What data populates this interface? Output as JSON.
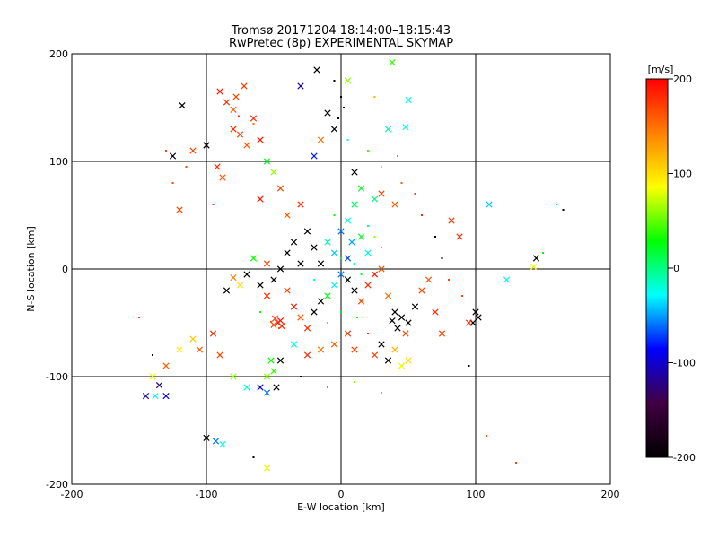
{
  "chart_data": {
    "type": "scatter",
    "title": "Tromsø 20171204 18:14:00–18:15:43",
    "subtitle": "RwPretec (8p) EXPERIMENTAL SKYMAP",
    "xlabel": "E-W location [km]",
    "ylabel": "N-S location [km]",
    "xlim": [
      -200,
      200
    ],
    "ylim": [
      -200,
      200
    ],
    "x_ticks": [
      "-200",
      "-100",
      "0",
      "100",
      "200"
    ],
    "y_ticks": [
      "-200",
      "-100",
      "0",
      "100",
      "200"
    ],
    "grid_lines_x": [
      -100,
      0,
      100
    ],
    "grid_lines_y": [
      -100,
      0,
      100
    ],
    "colorbar": {
      "unit_label": "[m/s]",
      "range": [
        -200,
        200
      ],
      "ticks": [
        "200",
        "100",
        "0",
        "-100",
        "-200"
      ],
      "colors": [
        "#000000",
        "#400040",
        "#0000ff",
        "#00ffff",
        "#00ff00",
        "#ffff00",
        "#ff8000",
        "#ff0000"
      ],
      "placement": "right"
    },
    "marker_styles": [
      "x",
      "dot"
    ],
    "points": [
      {
        "x": -47,
        "y": -50,
        "v": 180,
        "m": "x"
      },
      {
        "x": -45,
        "y": -48,
        "v": 190,
        "m": "x"
      },
      {
        "x": -50,
        "y": -52,
        "v": 170,
        "m": "x"
      },
      {
        "x": -44,
        "y": -53,
        "v": 185,
        "m": "x"
      },
      {
        "x": -49,
        "y": -46,
        "v": 175,
        "m": "x"
      },
      {
        "x": -52,
        "y": -49,
        "v": 160,
        "m": "dot"
      },
      {
        "x": -46,
        "y": -55,
        "v": 165,
        "m": "dot"
      },
      {
        "x": -85,
        "y": 155,
        "v": 180,
        "m": "x"
      },
      {
        "x": -78,
        "y": 160,
        "v": 170,
        "m": "x"
      },
      {
        "x": -80,
        "y": 148,
        "v": 160,
        "m": "x"
      },
      {
        "x": -90,
        "y": 165,
        "v": 190,
        "m": "x"
      },
      {
        "x": -72,
        "y": 170,
        "v": 175,
        "m": "x"
      },
      {
        "x": -76,
        "y": 142,
        "v": 185,
        "m": "dot"
      },
      {
        "x": -65,
        "y": 135,
        "v": 150,
        "m": "dot"
      },
      {
        "x": -118,
        "y": 152,
        "v": -200,
        "m": "x"
      },
      {
        "x": -100,
        "y": 115,
        "v": -200,
        "m": "x"
      },
      {
        "x": -125,
        "y": 105,
        "v": -190,
        "m": "x"
      },
      {
        "x": -110,
        "y": 110,
        "v": 170,
        "m": "x"
      },
      {
        "x": -92,
        "y": 95,
        "v": 180,
        "m": "x"
      },
      {
        "x": -88,
        "y": 85,
        "v": 160,
        "m": "x"
      },
      {
        "x": -120,
        "y": 55,
        "v": 170,
        "m": "x"
      },
      {
        "x": -95,
        "y": 60,
        "v": 180,
        "m": "dot"
      },
      {
        "x": -55,
        "y": 100,
        "v": 20,
        "m": "x"
      },
      {
        "x": -50,
        "y": 90,
        "v": 60,
        "m": "x"
      },
      {
        "x": -45,
        "y": 75,
        "v": 170,
        "m": "x"
      },
      {
        "x": -60,
        "y": 65,
        "v": 190,
        "m": "x"
      },
      {
        "x": -40,
        "y": 50,
        "v": 160,
        "m": "x"
      },
      {
        "x": -30,
        "y": 60,
        "v": 180,
        "m": "x"
      },
      {
        "x": -20,
        "y": 105,
        "v": -80,
        "m": "x"
      },
      {
        "x": -15,
        "y": 120,
        "v": 150,
        "m": "x"
      },
      {
        "x": -10,
        "y": 145,
        "v": -200,
        "m": "x"
      },
      {
        "x": -5,
        "y": 130,
        "v": -200,
        "m": "x"
      },
      {
        "x": -18,
        "y": 185,
        "v": -200,
        "m": "x"
      },
      {
        "x": -30,
        "y": 170,
        "v": -110,
        "m": "x"
      },
      {
        "x": 5,
        "y": 175,
        "v": 60,
        "m": "x"
      },
      {
        "x": 25,
        "y": 160,
        "v": 120,
        "m": "dot"
      },
      {
        "x": 38,
        "y": 192,
        "v": 40,
        "m": "x"
      },
      {
        "x": 50,
        "y": 157,
        "v": -30,
        "m": "x"
      },
      {
        "x": 48,
        "y": 132,
        "v": -20,
        "m": "x"
      },
      {
        "x": 35,
        "y": 130,
        "v": -10,
        "m": "x"
      },
      {
        "x": 42,
        "y": 105,
        "v": 150,
        "m": "dot"
      },
      {
        "x": 10,
        "y": 90,
        "v": -200,
        "m": "x"
      },
      {
        "x": 15,
        "y": 75,
        "v": 20,
        "m": "x"
      },
      {
        "x": 25,
        "y": 65,
        "v": 0,
        "m": "x"
      },
      {
        "x": 30,
        "y": 70,
        "v": 170,
        "m": "x"
      },
      {
        "x": 40,
        "y": 60,
        "v": 160,
        "m": "x"
      },
      {
        "x": 10,
        "y": 60,
        "v": 10,
        "m": "x"
      },
      {
        "x": 5,
        "y": 45,
        "v": -30,
        "m": "x"
      },
      {
        "x": 0,
        "y": 35,
        "v": -60,
        "m": "x"
      },
      {
        "x": 8,
        "y": 25,
        "v": -50,
        "m": "x"
      },
      {
        "x": 15,
        "y": 30,
        "v": 20,
        "m": "x"
      },
      {
        "x": 20,
        "y": 15,
        "v": -20,
        "m": "x"
      },
      {
        "x": 5,
        "y": 10,
        "v": -70,
        "m": "x"
      },
      {
        "x": -5,
        "y": 15,
        "v": -40,
        "m": "x"
      },
      {
        "x": -10,
        "y": 25,
        "v": -10,
        "m": "x"
      },
      {
        "x": -15,
        "y": 5,
        "v": -200,
        "m": "x"
      },
      {
        "x": -20,
        "y": 20,
        "v": -200,
        "m": "x"
      },
      {
        "x": -25,
        "y": 35,
        "v": -200,
        "m": "x"
      },
      {
        "x": -35,
        "y": 25,
        "v": -200,
        "m": "x"
      },
      {
        "x": -40,
        "y": 15,
        "v": -200,
        "m": "x"
      },
      {
        "x": -30,
        "y": 5,
        "v": -200,
        "m": "x"
      },
      {
        "x": -45,
        "y": 0,
        "v": -200,
        "m": "x"
      },
      {
        "x": -50,
        "y": -10,
        "v": -200,
        "m": "x"
      },
      {
        "x": -55,
        "y": 5,
        "v": 170,
        "m": "x"
      },
      {
        "x": -60,
        "y": -15,
        "v": -200,
        "m": "x"
      },
      {
        "x": -65,
        "y": 10,
        "v": 30,
        "m": "x"
      },
      {
        "x": -70,
        "y": -5,
        "v": -200,
        "m": "x"
      },
      {
        "x": -75,
        "y": -15,
        "v": 100,
        "m": "x"
      },
      {
        "x": -80,
        "y": -8,
        "v": 140,
        "m": "x"
      },
      {
        "x": -85,
        "y": -20,
        "v": -200,
        "m": "x"
      },
      {
        "x": -55,
        "y": -25,
        "v": 180,
        "m": "x"
      },
      {
        "x": -40,
        "y": -20,
        "v": 170,
        "m": "x"
      },
      {
        "x": -35,
        "y": -35,
        "v": 190,
        "m": "x"
      },
      {
        "x": -30,
        "y": -45,
        "v": 160,
        "m": "x"
      },
      {
        "x": -25,
        "y": -55,
        "v": 180,
        "m": "x"
      },
      {
        "x": -20,
        "y": -40,
        "v": -200,
        "m": "x"
      },
      {
        "x": -15,
        "y": -30,
        "v": -200,
        "m": "x"
      },
      {
        "x": -10,
        "y": -25,
        "v": 20,
        "m": "x"
      },
      {
        "x": -5,
        "y": -15,
        "v": -30,
        "m": "x"
      },
      {
        "x": 0,
        "y": -5,
        "v": -60,
        "m": "x"
      },
      {
        "x": 5,
        "y": -10,
        "v": -200,
        "m": "x"
      },
      {
        "x": 10,
        "y": -20,
        "v": -200,
        "m": "x"
      },
      {
        "x": 15,
        "y": -30,
        "v": 170,
        "m": "x"
      },
      {
        "x": 20,
        "y": -15,
        "v": 180,
        "m": "x"
      },
      {
        "x": 25,
        "y": -5,
        "v": 190,
        "m": "x"
      },
      {
        "x": 30,
        "y": 0,
        "v": 160,
        "m": "x"
      },
      {
        "x": 35,
        "y": -25,
        "v": 150,
        "m": "x"
      },
      {
        "x": 40,
        "y": -40,
        "v": -200,
        "m": "x"
      },
      {
        "x": 45,
        "y": -45,
        "v": -200,
        "m": "x"
      },
      {
        "x": 50,
        "y": -50,
        "v": -200,
        "m": "x"
      },
      {
        "x": 38,
        "y": -48,
        "v": -200,
        "m": "x"
      },
      {
        "x": 42,
        "y": -55,
        "v": -200,
        "m": "x"
      },
      {
        "x": 55,
        "y": -35,
        "v": -200,
        "m": "x"
      },
      {
        "x": 60,
        "y": -20,
        "v": 170,
        "m": "x"
      },
      {
        "x": 65,
        "y": -10,
        "v": 160,
        "m": "x"
      },
      {
        "x": 70,
        "y": -40,
        "v": 180,
        "m": "x"
      },
      {
        "x": 48,
        "y": -60,
        "v": 170,
        "m": "x"
      },
      {
        "x": 30,
        "y": -70,
        "v": -200,
        "m": "x"
      },
      {
        "x": 25,
        "y": -80,
        "v": 170,
        "m": "x"
      },
      {
        "x": 35,
        "y": -85,
        "v": -200,
        "m": "x"
      },
      {
        "x": 45,
        "y": -90,
        "v": 80,
        "m": "x"
      },
      {
        "x": 50,
        "y": -85,
        "v": 100,
        "m": "x"
      },
      {
        "x": 40,
        "y": -75,
        "v": 120,
        "m": "x"
      },
      {
        "x": 10,
        "y": -75,
        "v": 170,
        "m": "x"
      },
      {
        "x": 5,
        "y": -60,
        "v": 180,
        "m": "x"
      },
      {
        "x": -5,
        "y": -70,
        "v": 160,
        "m": "x"
      },
      {
        "x": -15,
        "y": -75,
        "v": 150,
        "m": "x"
      },
      {
        "x": -25,
        "y": -80,
        "v": 180,
        "m": "x"
      },
      {
        "x": -35,
        "y": -70,
        "v": -20,
        "m": "x"
      },
      {
        "x": -45,
        "y": -85,
        "v": -200,
        "m": "x"
      },
      {
        "x": -50,
        "y": -95,
        "v": 40,
        "m": "x"
      },
      {
        "x": -52,
        "y": -85,
        "v": 30,
        "m": "x"
      },
      {
        "x": -55,
        "y": -100,
        "v": 60,
        "m": "x"
      },
      {
        "x": -48,
        "y": -110,
        "v": -200,
        "m": "x"
      },
      {
        "x": -55,
        "y": -115,
        "v": -60,
        "m": "x"
      },
      {
        "x": -60,
        "y": -110,
        "v": -90,
        "m": "x"
      },
      {
        "x": -70,
        "y": -110,
        "v": -20,
        "m": "x"
      },
      {
        "x": -80,
        "y": -100,
        "v": 60,
        "m": "x"
      },
      {
        "x": -90,
        "y": -80,
        "v": 170,
        "m": "x"
      },
      {
        "x": -95,
        "y": -60,
        "v": 180,
        "m": "x"
      },
      {
        "x": -105,
        "y": -75,
        "v": 160,
        "m": "x"
      },
      {
        "x": -110,
        "y": -65,
        "v": 110,
        "m": "x"
      },
      {
        "x": -120,
        "y": -75,
        "v": 90,
        "m": "x"
      },
      {
        "x": -130,
        "y": -90,
        "v": 160,
        "m": "x"
      },
      {
        "x": -140,
        "y": -100,
        "v": 80,
        "m": "x"
      },
      {
        "x": -135,
        "y": -108,
        "v": -120,
        "m": "x"
      },
      {
        "x": -145,
        "y": -118,
        "v": -100,
        "m": "x"
      },
      {
        "x": -138,
        "y": -118,
        "v": -30,
        "m": "x"
      },
      {
        "x": -130,
        "y": -118,
        "v": -90,
        "m": "x"
      },
      {
        "x": -100,
        "y": -157,
        "v": -200,
        "m": "x"
      },
      {
        "x": -93,
        "y": -160,
        "v": -60,
        "m": "x"
      },
      {
        "x": -88,
        "y": -163,
        "v": -30,
        "m": "x"
      },
      {
        "x": -55,
        "y": -185,
        "v": 80,
        "m": "x"
      },
      {
        "x": -80,
        "y": 130,
        "v": 180,
        "m": "x"
      },
      {
        "x": -75,
        "y": 125,
        "v": 170,
        "m": "x"
      },
      {
        "x": -70,
        "y": 115,
        "v": 160,
        "m": "x"
      },
      {
        "x": -65,
        "y": 140,
        "v": 180,
        "m": "x"
      },
      {
        "x": -60,
        "y": 120,
        "v": 190,
        "m": "x"
      },
      {
        "x": -100,
        "y": 115,
        "v": -200,
        "m": "x"
      },
      {
        "x": 100,
        "y": -40,
        "v": -200,
        "m": "x"
      },
      {
        "x": 102,
        "y": -45,
        "v": -200,
        "m": "x"
      },
      {
        "x": 98,
        "y": -50,
        "v": -200,
        "m": "x"
      },
      {
        "x": 110,
        "y": 60,
        "v": -40,
        "m": "x"
      },
      {
        "x": 123,
        "y": -10,
        "v": -30,
        "m": "x"
      },
      {
        "x": 145,
        "y": 10,
        "v": -200,
        "m": "x"
      },
      {
        "x": 143,
        "y": 2,
        "v": 80,
        "m": "x"
      },
      {
        "x": 82,
        "y": 45,
        "v": 170,
        "m": "x"
      },
      {
        "x": 88,
        "y": 30,
        "v": 180,
        "m": "x"
      },
      {
        "x": 95,
        "y": -50,
        "v": 180,
        "m": "x"
      },
      {
        "x": 75,
        "y": -60,
        "v": 170,
        "m": "x"
      },
      {
        "x": -5,
        "y": 175,
        "v": -200,
        "m": "dot"
      },
      {
        "x": 0,
        "y": 160,
        "v": -200,
        "m": "dot"
      },
      {
        "x": 2,
        "y": 150,
        "v": -200,
        "m": "dot"
      },
      {
        "x": -2,
        "y": 140,
        "v": -200,
        "m": "dot"
      },
      {
        "x": 5,
        "y": 120,
        "v": -30,
        "m": "dot"
      },
      {
        "x": 20,
        "y": 110,
        "v": 40,
        "m": "dot"
      },
      {
        "x": 30,
        "y": 95,
        "v": 60,
        "m": "dot"
      },
      {
        "x": 45,
        "y": 80,
        "v": 160,
        "m": "dot"
      },
      {
        "x": 55,
        "y": 70,
        "v": 170,
        "m": "dot"
      },
      {
        "x": 60,
        "y": 50,
        "v": 180,
        "m": "dot"
      },
      {
        "x": 70,
        "y": 30,
        "v": -200,
        "m": "dot"
      },
      {
        "x": 75,
        "y": 10,
        "v": -200,
        "m": "dot"
      },
      {
        "x": 80,
        "y": -10,
        "v": 170,
        "m": "dot"
      },
      {
        "x": 90,
        "y": -25,
        "v": 170,
        "m": "dot"
      },
      {
        "x": 95,
        "y": -90,
        "v": -200,
        "m": "dot"
      },
      {
        "x": 130,
        "y": -180,
        "v": 170,
        "m": "dot"
      },
      {
        "x": 108,
        "y": -155,
        "v": 170,
        "m": "dot"
      },
      {
        "x": 165,
        "y": 55,
        "v": -200,
        "m": "dot"
      },
      {
        "x": 160,
        "y": 60,
        "v": 20,
        "m": "dot"
      },
      {
        "x": 150,
        "y": 15,
        "v": 30,
        "m": "dot"
      },
      {
        "x": -150,
        "y": -45,
        "v": 170,
        "m": "dot"
      },
      {
        "x": -140,
        "y": -80,
        "v": -200,
        "m": "dot"
      },
      {
        "x": -125,
        "y": 80,
        "v": 170,
        "m": "dot"
      },
      {
        "x": -115,
        "y": 95,
        "v": 170,
        "m": "dot"
      },
      {
        "x": -130,
        "y": 110,
        "v": 170,
        "m": "dot"
      },
      {
        "x": -60,
        "y": -40,
        "v": 30,
        "m": "dot"
      },
      {
        "x": -20,
        "y": -10,
        "v": -20,
        "m": "dot"
      },
      {
        "x": -10,
        "y": 0,
        "v": -40,
        "m": "dot"
      },
      {
        "x": 0,
        "y": 10,
        "v": 10,
        "m": "dot"
      },
      {
        "x": 10,
        "y": 5,
        "v": -10,
        "m": "dot"
      },
      {
        "x": 15,
        "y": -5,
        "v": 20,
        "m": "dot"
      },
      {
        "x": 20,
        "y": 40,
        "v": 0,
        "m": "dot"
      },
      {
        "x": 25,
        "y": 30,
        "v": 60,
        "m": "dot"
      },
      {
        "x": 30,
        "y": 20,
        "v": -10,
        "m": "dot"
      },
      {
        "x": -5,
        "y": 50,
        "v": 30,
        "m": "dot"
      },
      {
        "x": -10,
        "y": -50,
        "v": 40,
        "m": "dot"
      },
      {
        "x": 0,
        "y": -40,
        "v": 20,
        "m": "dot"
      },
      {
        "x": 12,
        "y": -45,
        "v": 30,
        "m": "dot"
      },
      {
        "x": 20,
        "y": -60,
        "v": 180,
        "m": "dot"
      },
      {
        "x": -30,
        "y": -100,
        "v": -200,
        "m": "dot"
      },
      {
        "x": -10,
        "y": -110,
        "v": 150,
        "m": "dot"
      },
      {
        "x": 10,
        "y": -105,
        "v": 60,
        "m": "dot"
      },
      {
        "x": 30,
        "y": -115,
        "v": 40,
        "m": "dot"
      },
      {
        "x": -65,
        "y": -175,
        "v": -200,
        "m": "dot"
      }
    ]
  }
}
